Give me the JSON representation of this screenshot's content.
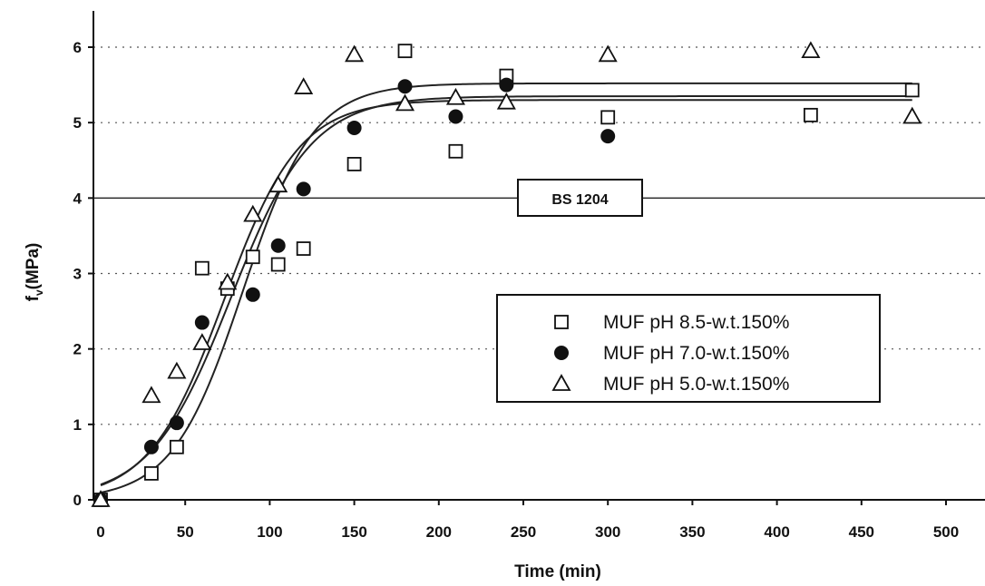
{
  "chart_data": {
    "type": "scatter",
    "xlabel": "Time (min)",
    "ylabel": "f",
    "ylabel_subscript": "v",
    "ylabel_unit": "(MPa)",
    "xlim": [
      0,
      500
    ],
    "ylim": [
      0,
      6
    ],
    "xticks": [
      "0",
      "50",
      "100",
      "150",
      "200",
      "250",
      "300",
      "350",
      "400",
      "450",
      "500"
    ],
    "yticks": [
      "0",
      "1",
      "2",
      "3",
      "4",
      "5",
      "6"
    ],
    "grid": "horizontal dotted",
    "legend_position": "center-right",
    "reference_line": {
      "label": "BS 1204",
      "y": 4
    },
    "series": [
      {
        "name": "MUF pH 8.5-w.t.150%",
        "marker": "open-square",
        "x": [
          0,
          30,
          45,
          60,
          75,
          90,
          105,
          120,
          150,
          180,
          210,
          240,
          300,
          420,
          480
        ],
        "y": [
          0,
          0.35,
          0.7,
          3.07,
          2.8,
          3.22,
          3.12,
          3.33,
          4.45,
          5.95,
          4.62,
          5.62,
          5.07,
          5.1,
          5.43
        ],
        "fit": {
          "asymptote": 5.35,
          "k": 0.042,
          "x0": 77
        }
      },
      {
        "name": "MUF pH 7.0-w.t.150%",
        "marker": "filled-circle",
        "x": [
          0,
          30,
          45,
          60,
          90,
          105,
          120,
          150,
          180,
          210,
          240,
          300
        ],
        "y": [
          0,
          0.7,
          1.02,
          2.35,
          2.72,
          3.37,
          4.12,
          4.93,
          5.48,
          5.08,
          5.5,
          4.82
        ],
        "fit": {
          "asymptote": 5.3,
          "k": 0.045,
          "x0": 73
        }
      },
      {
        "name": "MUF pH 5.0-w.t.150%",
        "marker": "open-triangle",
        "x": [
          0,
          30,
          45,
          60,
          75,
          90,
          105,
          120,
          150,
          180,
          210,
          240,
          300,
          420,
          480
        ],
        "y": [
          0,
          1.38,
          1.7,
          2.08,
          2.88,
          3.78,
          4.17,
          5.47,
          5.9,
          5.25,
          5.33,
          5.27,
          5.9,
          5.95,
          5.08
        ],
        "fit": {
          "asymptote": 5.52,
          "k": 0.048,
          "x0": 84
        }
      }
    ]
  }
}
